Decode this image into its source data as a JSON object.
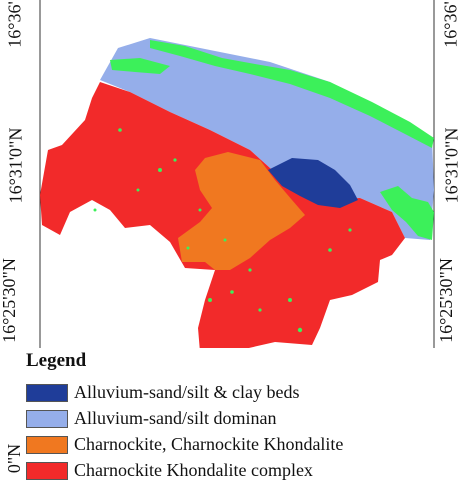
{
  "map": {
    "lat_labels_left": [
      "16°36'",
      "16°31'0\"N",
      "16°25'30\"N",
      "0\"N"
    ],
    "lat_labels_right": [
      "16°36'",
      "16°31'0\"N",
      "16°25'30\"N"
    ],
    "colors": {
      "alluvium_clay": "#1f3d99",
      "alluvium_silt": "#95aeea",
      "charnockite": "#f07820",
      "charnockite_complex": "#f22a2a",
      "green_feature": "#3cf05a"
    }
  },
  "legend": {
    "title": "Legend",
    "items": [
      {
        "label": "Alluvium-sand/silt & clay beds",
        "color": "#1f3d99"
      },
      {
        "label": "Alluvium-sand/silt dominan",
        "color": "#95aeea"
      },
      {
        "label": "Charnockite, Charnockite Khondalite",
        "color": "#f07820"
      },
      {
        "label": "Charnockite Khondalite complex",
        "color": "#f22a2a"
      }
    ]
  }
}
